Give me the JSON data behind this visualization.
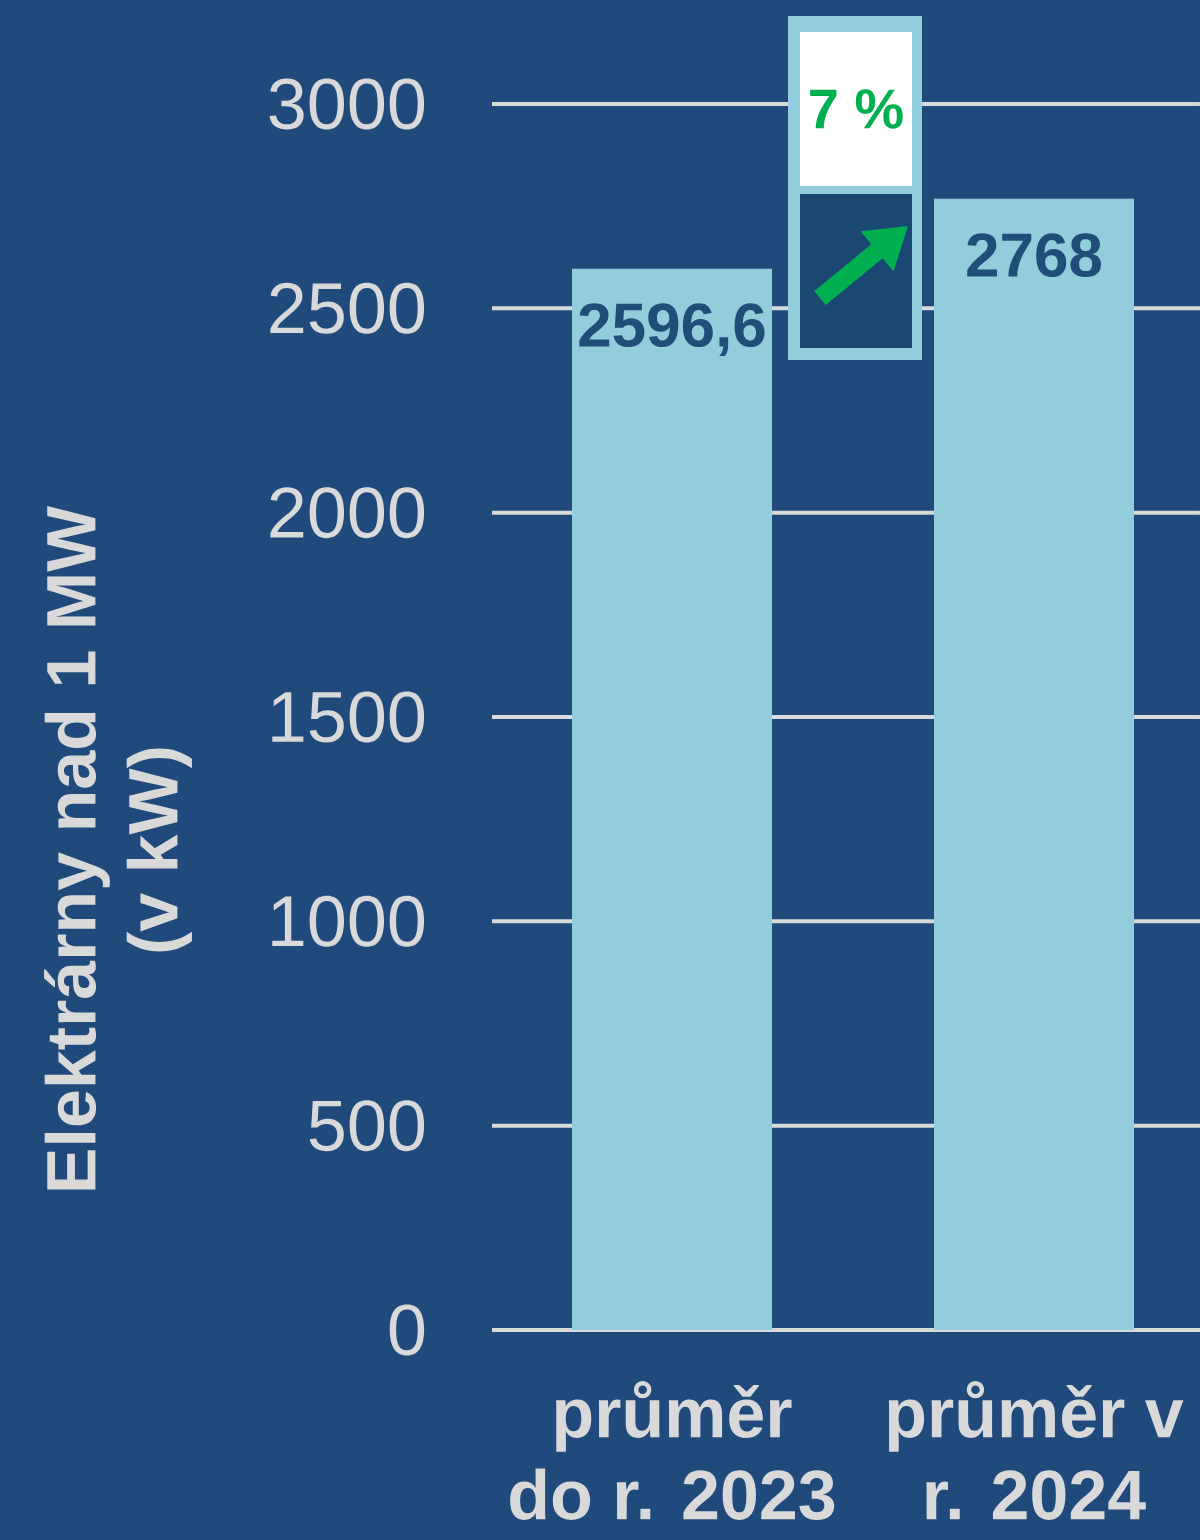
{
  "chart_data": {
    "type": "bar",
    "ylabel": "Elektrárny nad 1 MW (v kW)",
    "categories": [
      "průměr do r. 2023",
      "průměr v r. 2024"
    ],
    "values": [
      2596.6,
      2768
    ],
    "value_labels": [
      "2596,6",
      "2768"
    ],
    "color": "#92cddc",
    "ylim": [
      0,
      3000
    ],
    "yticks": [
      0,
      500,
      1000,
      1500,
      2000,
      2500,
      3000
    ],
    "grid": "y",
    "annotations": [
      "7 %"
    ]
  }
}
